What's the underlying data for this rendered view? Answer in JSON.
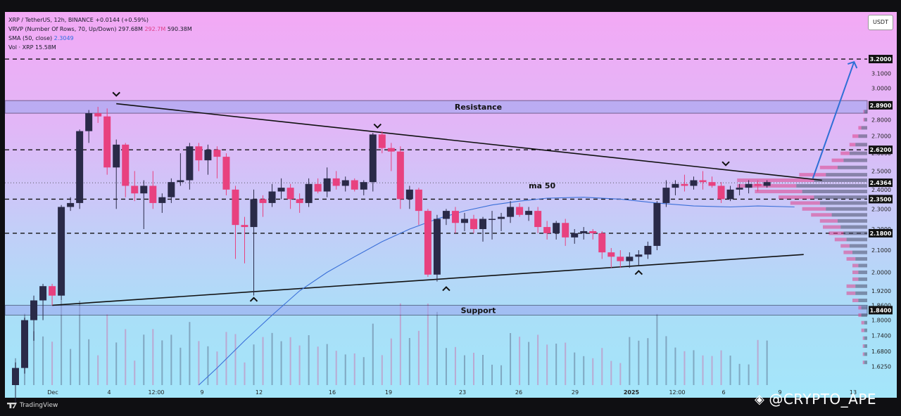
{
  "legend": {
    "line1": "XRP / TetherUS, 12h, BINANCE",
    "line1_change": "+0.0144 (+0.59%)",
    "line2": "VRVP (Number Of Rows, 70, Up/Down)",
    "line2_v1": "297.68M",
    "line2_v2": "292.7M",
    "line2_v3": "590.38M",
    "line3": "SMA (50, close)",
    "line3_val": "2.3049",
    "line4": "Vol · XRP",
    "line4_val": "15.58M"
  },
  "currency_button": "USDT",
  "footer_logo": "TradingView",
  "watermark": "@CRYPTO_APE",
  "chart_data": {
    "type": "candlestick",
    "symbol": "XRP / TetherUS",
    "interval": "12h",
    "exchange": "BINANCE",
    "y_scale": "log",
    "ylim": [
      1.56,
      3.55
    ],
    "y_tick_labels": [
      "3.1000",
      "3.0000",
      "2.9000",
      "2.8000",
      "2.7000",
      "2.6000",
      "2.5000",
      "2.4000",
      "2.3000",
      "2.2000",
      "2.1000",
      "2.0000",
      "1.9200",
      "1.8600",
      "1.8000",
      "1.7400",
      "1.6800",
      "1.6250"
    ],
    "x_tick_labels": [
      "Dec",
      "4",
      "12:00",
      "9",
      "12",
      "16",
      "19",
      "23",
      "26",
      "29",
      "2025",
      "12:00",
      "6",
      "9",
      "13"
    ],
    "price_labels": [
      {
        "text": "3.2000",
        "value": 3.2,
        "dark": true
      },
      {
        "text": "2.8900",
        "value": 2.89,
        "dark": true
      },
      {
        "text": "2.6200",
        "value": 2.62,
        "dark": true
      },
      {
        "text": "2.4364",
        "value": 2.4364,
        "dark": true
      },
      {
        "text": "2.3500",
        "value": 2.35,
        "dark": true
      },
      {
        "text": "2.1800",
        "value": 2.18,
        "dark": true
      },
      {
        "text": "1.8400",
        "value": 1.84,
        "dark": true
      }
    ],
    "horizontal_levels": [
      3.2,
      2.62,
      2.35,
      2.18
    ],
    "zones": [
      {
        "label": "Resistance",
        "low": 2.84,
        "high": 2.92
      },
      {
        "label": "Support",
        "low": 1.82,
        "high": 1.86
      }
    ],
    "ma_label": "ma 50",
    "sma_50": [
      [
        20,
        1.56
      ],
      [
        22,
        1.62
      ],
      [
        25,
        1.72
      ],
      [
        28,
        1.82
      ],
      [
        31,
        1.92
      ],
      [
        34,
        2.0
      ],
      [
        37,
        2.07
      ],
      [
        40,
        2.14
      ],
      [
        43,
        2.2
      ],
      [
        46,
        2.25
      ],
      [
        49,
        2.29
      ],
      [
        52,
        2.32
      ],
      [
        55,
        2.34
      ],
      [
        58,
        2.355
      ],
      [
        62,
        2.36
      ],
      [
        66,
        2.35
      ],
      [
        70,
        2.33
      ],
      [
        74,
        2.315
      ],
      [
        78,
        2.31
      ],
      [
        81,
        2.315
      ],
      [
        85,
        2.31
      ]
    ],
    "trendlines": [
      {
        "name": "upper",
        "from": [
          11,
          2.9
        ],
        "to": [
          88,
          2.45
        ]
      },
      {
        "name": "lower",
        "from": [
          4,
          1.86
        ],
        "to": [
          86,
          2.08
        ]
      }
    ],
    "projection_arrow": {
      "from": [
        87,
        2.46
      ],
      "to": [
        91.5,
        3.18
      ]
    },
    "markers": [
      {
        "dir": "down",
        "x": 11,
        "value": 2.96
      },
      {
        "dir": "down",
        "x": 39.5,
        "value": 2.76
      },
      {
        "dir": "down",
        "x": 77.5,
        "value": 2.54
      },
      {
        "dir": "up",
        "x": 26,
        "value": 1.885
      },
      {
        "dir": "up",
        "x": 47,
        "value": 1.93
      },
      {
        "dir": "up",
        "x": 68,
        "value": 2.0
      }
    ],
    "candles": [
      [
        1.56,
        1.64,
        1.5,
        1.62
      ],
      [
        1.62,
        1.81,
        1.6,
        1.8
      ],
      [
        1.8,
        1.9,
        1.72,
        1.88
      ],
      [
        1.88,
        1.95,
        1.8,
        1.94
      ],
      [
        1.94,
        1.95,
        1.86,
        1.9
      ],
      [
        1.9,
        2.32,
        1.88,
        2.31
      ],
      [
        2.31,
        2.36,
        2.29,
        2.33
      ],
      [
        2.33,
        2.74,
        2.3,
        2.73
      ],
      [
        2.73,
        2.86,
        2.66,
        2.84
      ],
      [
        2.84,
        2.88,
        2.78,
        2.82
      ],
      [
        2.82,
        2.87,
        2.48,
        2.52
      ],
      [
        2.52,
        2.68,
        2.3,
        2.65
      ],
      [
        2.65,
        2.66,
        2.36,
        2.42
      ],
      [
        2.42,
        2.5,
        2.34,
        2.38
      ],
      [
        2.38,
        2.45,
        2.2,
        2.42
      ],
      [
        2.42,
        2.5,
        2.3,
        2.33
      ],
      [
        2.33,
        2.38,
        2.28,
        2.36
      ],
      [
        2.36,
        2.46,
        2.33,
        2.44
      ],
      [
        2.44,
        2.6,
        2.42,
        2.45
      ],
      [
        2.45,
        2.66,
        2.4,
        2.64
      ],
      [
        2.64,
        2.66,
        2.5,
        2.56
      ],
      [
        2.56,
        2.65,
        2.48,
        2.62
      ],
      [
        2.62,
        2.64,
        2.46,
        2.58
      ],
      [
        2.58,
        2.6,
        2.37,
        2.4
      ],
      [
        2.4,
        2.42,
        2.06,
        2.22
      ],
      [
        2.22,
        2.26,
        2.04,
        2.21
      ],
      [
        2.21,
        2.4,
        1.9,
        2.35
      ],
      [
        2.35,
        2.37,
        2.26,
        2.33
      ],
      [
        2.33,
        2.43,
        2.31,
        2.39
      ],
      [
        2.39,
        2.46,
        2.35,
        2.41
      ],
      [
        2.41,
        2.43,
        2.3,
        2.35
      ],
      [
        2.35,
        2.38,
        2.28,
        2.33
      ],
      [
        2.33,
        2.46,
        2.31,
        2.43
      ],
      [
        2.43,
        2.46,
        2.38,
        2.39
      ],
      [
        2.39,
        2.52,
        2.36,
        2.46
      ],
      [
        2.46,
        2.5,
        2.4,
        2.42
      ],
      [
        2.42,
        2.47,
        2.39,
        2.45
      ],
      [
        2.45,
        2.46,
        2.39,
        2.4
      ],
      [
        2.4,
        2.45,
        2.37,
        2.44
      ],
      [
        2.44,
        2.72,
        2.39,
        2.71
      ],
      [
        2.71,
        2.73,
        2.6,
        2.63
      ],
      [
        2.63,
        2.66,
        2.5,
        2.61
      ],
      [
        2.61,
        2.64,
        2.3,
        2.35
      ],
      [
        2.35,
        2.42,
        2.3,
        2.4
      ],
      [
        2.4,
        2.41,
        2.22,
        2.29
      ],
      [
        2.29,
        2.3,
        1.98,
        1.99
      ],
      [
        1.99,
        2.27,
        1.96,
        2.25
      ],
      [
        2.25,
        2.3,
        2.22,
        2.29
      ],
      [
        2.29,
        2.31,
        2.18,
        2.23
      ],
      [
        2.23,
        2.28,
        2.19,
        2.25
      ],
      [
        2.25,
        2.27,
        2.18,
        2.2
      ],
      [
        2.2,
        2.26,
        2.14,
        2.25
      ],
      [
        2.25,
        2.29,
        2.15,
        2.25
      ],
      [
        2.25,
        2.28,
        2.19,
        2.26
      ],
      [
        2.26,
        2.34,
        2.23,
        2.31
      ],
      [
        2.31,
        2.33,
        2.26,
        2.27
      ],
      [
        2.27,
        2.31,
        2.24,
        2.29
      ],
      [
        2.29,
        2.31,
        2.18,
        2.21
      ],
      [
        2.21,
        2.24,
        2.15,
        2.18
      ],
      [
        2.18,
        2.24,
        2.15,
        2.23
      ],
      [
        2.23,
        2.25,
        2.12,
        2.16
      ],
      [
        2.16,
        2.2,
        2.13,
        2.18
      ],
      [
        2.18,
        2.21,
        2.15,
        2.19
      ],
      [
        2.19,
        2.2,
        2.15,
        2.18
      ],
      [
        2.18,
        2.19,
        2.06,
        2.09
      ],
      [
        2.09,
        2.11,
        2.02,
        2.07
      ],
      [
        2.07,
        2.1,
        2.02,
        2.05
      ],
      [
        2.05,
        2.09,
        2.02,
        2.07
      ],
      [
        2.07,
        2.1,
        2.03,
        2.08
      ],
      [
        2.08,
        2.14,
        2.06,
        2.12
      ],
      [
        2.12,
        2.34,
        2.1,
        2.33
      ],
      [
        2.33,
        2.45,
        2.31,
        2.41
      ],
      [
        2.41,
        2.45,
        2.37,
        2.43
      ],
      [
        2.43,
        2.48,
        2.39,
        2.42
      ],
      [
        2.42,
        2.47,
        2.4,
        2.45
      ],
      [
        2.45,
        2.5,
        2.4,
        2.44
      ],
      [
        2.44,
        2.47,
        2.41,
        2.42
      ],
      [
        2.42,
        2.44,
        2.33,
        2.35
      ],
      [
        2.35,
        2.42,
        2.34,
        2.4
      ],
      [
        2.4,
        2.43,
        2.37,
        2.41
      ],
      [
        2.41,
        2.45,
        2.38,
        2.43
      ],
      [
        2.43,
        2.45,
        2.39,
        2.42
      ],
      [
        2.42,
        2.45,
        2.41,
        2.44
      ]
    ],
    "volume_profile": [
      [
        2.85,
        1,
        0.3
      ],
      [
        2.8,
        1,
        0.3
      ],
      [
        2.75,
        2,
        1
      ],
      [
        2.7,
        3,
        2
      ],
      [
        2.65,
        4,
        2
      ],
      [
        2.6,
        6,
        3
      ],
      [
        2.56,
        8,
        4
      ],
      [
        2.52,
        10,
        6
      ],
      [
        2.48,
        14,
        9
      ],
      [
        2.45,
        18,
        26
      ],
      [
        2.42,
        24,
        20
      ],
      [
        2.39,
        22,
        16
      ],
      [
        2.36,
        18,
        12
      ],
      [
        2.33,
        16,
        10
      ],
      [
        2.3,
        14,
        8
      ],
      [
        2.27,
        12,
        7
      ],
      [
        2.24,
        10,
        6
      ],
      [
        2.21,
        9,
        6
      ],
      [
        2.18,
        8,
        5
      ],
      [
        2.15,
        7,
        4
      ],
      [
        2.12,
        6,
        3
      ],
      [
        2.09,
        5,
        3
      ],
      [
        2.06,
        4,
        3
      ],
      [
        2.03,
        3,
        2
      ],
      [
        2.0,
        3,
        2
      ],
      [
        1.97,
        3,
        2
      ],
      [
        1.94,
        4,
        3
      ],
      [
        1.91,
        4,
        3
      ],
      [
        1.88,
        3,
        2
      ],
      [
        1.85,
        2,
        1
      ],
      [
        1.82,
        2,
        1
      ],
      [
        1.79,
        1,
        1
      ],
      [
        1.76,
        1,
        1
      ],
      [
        1.73,
        1,
        0.5
      ],
      [
        1.7,
        1,
        0.5
      ],
      [
        1.67,
        1,
        0.5
      ],
      [
        1.64,
        1,
        0.5
      ]
    ]
  }
}
